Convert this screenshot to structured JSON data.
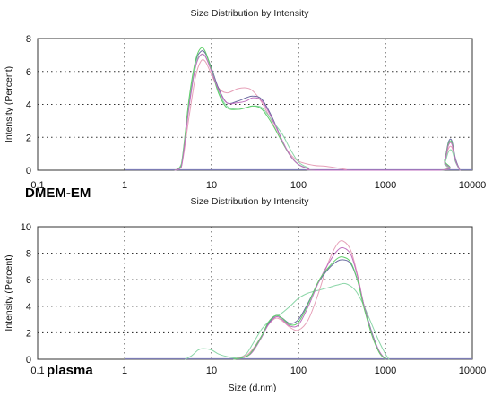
{
  "chart_data": [
    {
      "type": "line",
      "title": "Size Distribution by Intensity",
      "panel_label": "DMEM-EM",
      "xlabel": "",
      "ylabel": "Intensity (Percent)",
      "x_scale": "log",
      "xlim": [
        0.1,
        10000
      ],
      "ylim": [
        0,
        8
      ],
      "x_ticks": [
        "0.1",
        "1",
        "10",
        "100",
        "1000",
        "10000"
      ],
      "y_ticks": [
        "0",
        "2",
        "4",
        "6",
        "8"
      ],
      "grid": true,
      "series": [
        {
          "color": "#e6a0b8",
          "x": [
            3.8,
            4.5,
            5.5,
            6.5,
            7.5,
            8.5,
            10,
            12,
            15,
            20,
            25,
            30,
            38,
            50,
            65,
            80,
            100,
            150,
            200,
            270,
            350,
            420,
            4200,
            4800,
            5300,
            5800,
            6400,
            7200
          ],
          "y": [
            0,
            0.2,
            3.2,
            5.6,
            6.6,
            6.6,
            5.8,
            5.0,
            4.7,
            4.95,
            5.0,
            4.8,
            4.1,
            2.9,
            1.7,
            1.0,
            0.55,
            0.3,
            0.25,
            0.15,
            0.05,
            0,
            0,
            0.5,
            1.3,
            1.4,
            0.6,
            0
          ]
        },
        {
          "color": "#6a6aa0",
          "x": [
            3.8,
            4.5,
            5.5,
            6.5,
            7.5,
            8.5,
            10,
            12,
            15,
            20,
            25,
            30,
            38,
            50,
            65,
            80,
            100,
            130,
            170,
            4200,
            4800,
            5300,
            5800,
            6400,
            7200
          ],
          "y": [
            0,
            0.3,
            4.0,
            6.5,
            7.2,
            7.1,
            6.2,
            5.0,
            4.1,
            4.2,
            4.4,
            4.5,
            4.3,
            3.2,
            1.8,
            0.9,
            0.35,
            0.1,
            0,
            0,
            0.6,
            1.7,
            1.8,
            0.7,
            0
          ]
        },
        {
          "color": "#8cd6a8",
          "x": [
            3.8,
            4.5,
            5.5,
            6.5,
            7.5,
            8.5,
            10,
            12,
            15,
            20,
            25,
            30,
            38,
            50,
            65,
            80,
            100,
            130,
            170,
            4200,
            4800,
            5300,
            5800,
            6400,
            7200
          ],
          "y": [
            0,
            0.4,
            4.2,
            6.4,
            7.0,
            6.9,
            6.1,
            4.8,
            3.9,
            3.7,
            3.8,
            3.9,
            3.8,
            3.0,
            2.2,
            1.3,
            0.5,
            0.15,
            0,
            0,
            0.4,
            1.1,
            1.2,
            0.5,
            0
          ]
        },
        {
          "color": "#5fcf6a",
          "x": [
            3.8,
            4.5,
            5.5,
            6.5,
            7.5,
            8.5,
            10,
            12,
            15,
            20,
            25,
            30,
            38,
            50,
            65,
            80,
            100,
            130,
            170,
            4200,
            4800,
            5300,
            5800,
            6400,
            7200
          ],
          "y": [
            0,
            0.3,
            4.3,
            6.6,
            7.4,
            7.2,
            6.1,
            4.7,
            3.8,
            3.7,
            3.8,
            3.9,
            3.7,
            2.8,
            1.7,
            0.9,
            0.35,
            0.1,
            0,
            0,
            0.6,
            1.6,
            1.7,
            0.6,
            0
          ]
        },
        {
          "color": "#c070c0",
          "x": [
            3.8,
            4.5,
            5.5,
            6.5,
            7.5,
            8.5,
            10,
            12,
            15,
            20,
            25,
            30,
            38,
            50,
            65,
            80,
            100,
            130,
            170,
            4200,
            4800,
            5300,
            5800,
            6400,
            7200
          ],
          "y": [
            0,
            0.2,
            3.8,
            6.2,
            7.0,
            6.9,
            6.0,
            4.9,
            4.1,
            4.1,
            4.2,
            4.4,
            4.2,
            3.1,
            1.8,
            0.9,
            0.35,
            0.1,
            0,
            0,
            0.5,
            1.5,
            1.6,
            0.6,
            0
          ]
        }
      ]
    },
    {
      "type": "line",
      "title": "Size Distribution by Intensity",
      "panel_label": "plasma",
      "xlabel": "Size (d.nm)",
      "ylabel": "Intensity (Percent)",
      "x_scale": "log",
      "xlim": [
        0.1,
        10000
      ],
      "ylim": [
        0,
        10
      ],
      "x_ticks": [
        "0.1",
        "1",
        "10",
        "100",
        "1000",
        "10000"
      ],
      "y_ticks": [
        "0",
        "2",
        "4",
        "6",
        "8",
        "10"
      ],
      "grid": true,
      "series": [
        {
          "color": "#8cd6a8",
          "x": [
            5,
            6,
            7,
            8,
            10,
            12,
            15,
            20,
            25,
            30,
            38,
            45,
            55,
            65,
            80,
            100,
            130,
            170,
            220,
            280,
            350,
            450,
            550,
            700,
            850,
            1000,
            1100
          ],
          "y": [
            0,
            0.3,
            0.7,
            0.8,
            0.7,
            0.4,
            0.2,
            0.1,
            0.4,
            1.2,
            2.3,
            2.8,
            3.2,
            3.5,
            4.0,
            4.6,
            5.0,
            5.2,
            5.4,
            5.6,
            5.7,
            5.2,
            4.2,
            2.6,
            1.3,
            0.4,
            0
          ]
        },
        {
          "color": "#e6a0b8",
          "x": [
            18,
            25,
            30,
            38,
            45,
            55,
            65,
            80,
            100,
            130,
            170,
            220,
            280,
            330,
            400,
            480,
            560,
            700,
            850,
            1000
          ],
          "y": [
            0,
            0.3,
            0.8,
            1.8,
            2.6,
            3.1,
            2.9,
            2.4,
            2.2,
            3.0,
            5.0,
            7.3,
            8.7,
            8.9,
            8.2,
            6.3,
            4.2,
            1.8,
            0.5,
            0
          ]
        },
        {
          "color": "#6a6aa0",
          "x": [
            18,
            25,
            30,
            38,
            45,
            55,
            65,
            80,
            100,
            130,
            170,
            220,
            280,
            330,
            400,
            480,
            560,
            700,
            850,
            1000
          ],
          "y": [
            0,
            0.2,
            0.7,
            1.8,
            2.7,
            3.3,
            3.1,
            2.7,
            3.0,
            4.3,
            5.8,
            6.8,
            7.4,
            7.5,
            7.2,
            5.9,
            4.2,
            2.0,
            0.6,
            0
          ]
        },
        {
          "color": "#c070c0",
          "x": [
            18,
            25,
            30,
            38,
            45,
            55,
            65,
            80,
            100,
            130,
            170,
            220,
            280,
            330,
            400,
            480,
            560,
            700,
            850,
            1000
          ],
          "y": [
            0,
            0.2,
            0.6,
            1.7,
            2.6,
            3.2,
            3.0,
            2.5,
            2.6,
            4.0,
            5.8,
            7.2,
            8.2,
            8.4,
            7.9,
            6.2,
            4.2,
            1.9,
            0.6,
            0
          ]
        },
        {
          "color": "#5fcf6a",
          "x": [
            18,
            25,
            30,
            38,
            45,
            55,
            65,
            80,
            100,
            130,
            170,
            220,
            280,
            330,
            400,
            480,
            560,
            700,
            850,
            1000
          ],
          "y": [
            0,
            0.2,
            0.7,
            1.8,
            2.8,
            3.3,
            3.1,
            2.6,
            2.8,
            4.2,
            5.9,
            6.9,
            7.6,
            7.7,
            7.3,
            5.9,
            4.0,
            1.8,
            0.5,
            0
          ]
        }
      ]
    }
  ]
}
